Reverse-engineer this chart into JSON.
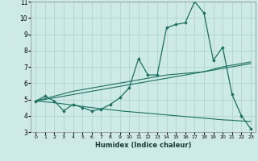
{
  "background_color": "#ceeae6",
  "grid_color": "#aad0cc",
  "line_color": "#1a7060",
  "xlabel": "Humidex (Indice chaleur)",
  "xlim": [
    -0.5,
    23.5
  ],
  "ylim": [
    3,
    11
  ],
  "yticks": [
    3,
    4,
    5,
    6,
    7,
    8,
    9,
    10,
    11
  ],
  "xticks": [
    0,
    1,
    2,
    3,
    4,
    5,
    6,
    7,
    8,
    9,
    10,
    11,
    12,
    13,
    14,
    15,
    16,
    17,
    18,
    19,
    20,
    21,
    22,
    23
  ],
  "y_main": [
    4.9,
    5.2,
    4.9,
    4.3,
    4.7,
    4.5,
    4.3,
    4.4,
    4.7,
    5.1,
    5.7,
    7.5,
    6.5,
    6.5,
    9.4,
    9.6,
    9.7,
    11.0,
    10.3,
    7.4,
    8.2,
    5.3,
    4.0,
    3.2
  ],
  "y_reg1": [
    4.9,
    5.05,
    5.2,
    5.35,
    5.5,
    5.6,
    5.7,
    5.8,
    5.9,
    6.0,
    6.1,
    6.2,
    6.3,
    6.4,
    6.5,
    6.55,
    6.6,
    6.65,
    6.7,
    6.85,
    7.0,
    7.1,
    7.2,
    7.3
  ],
  "y_reg2": [
    4.9,
    5.0,
    5.1,
    5.2,
    5.3,
    5.4,
    5.5,
    5.6,
    5.7,
    5.8,
    5.9,
    6.0,
    6.1,
    6.2,
    6.3,
    6.4,
    6.5,
    6.6,
    6.7,
    6.8,
    6.9,
    7.0,
    7.1,
    7.2
  ],
  "y_flat": [
    4.9,
    4.85,
    4.8,
    4.72,
    4.65,
    4.57,
    4.5,
    4.43,
    4.37,
    4.3,
    4.25,
    4.2,
    4.15,
    4.1,
    4.05,
    4.0,
    3.95,
    3.9,
    3.85,
    3.8,
    3.75,
    3.72,
    3.68,
    3.65
  ]
}
